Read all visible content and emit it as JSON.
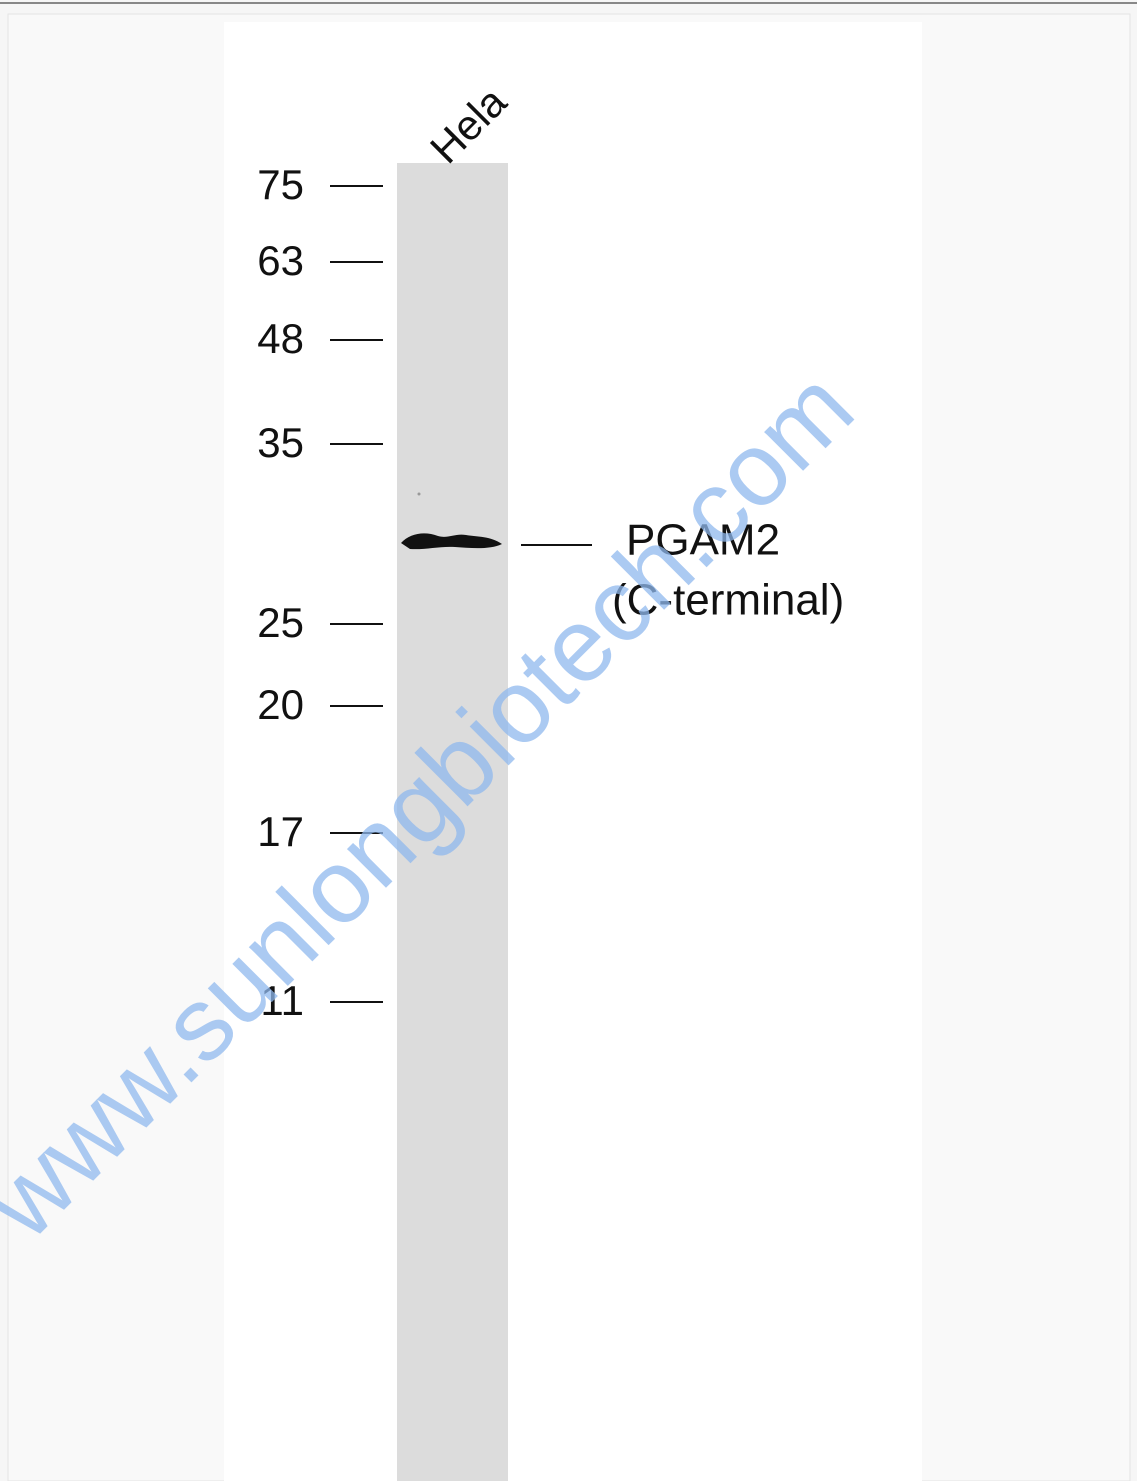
{
  "lane_label": "Hela",
  "markers": [
    "75",
    "63",
    "48",
    "35",
    "25",
    "20",
    "17",
    "11"
  ],
  "band_label": {
    "line1": "PGAM2",
    "line2": "(C-terminal)"
  },
  "watermark": "www.sunlongbiotech.com"
}
